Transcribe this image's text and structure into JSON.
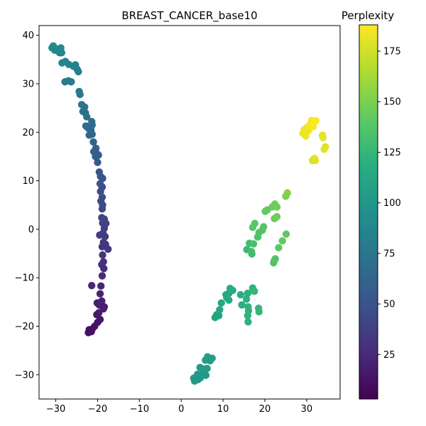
{
  "chart_data": {
    "type": "scatter",
    "title": "BREAST_CANCER_base10",
    "xlabel": "",
    "ylabel": "",
    "xlim": [
      -34,
      38
    ],
    "ylim": [
      -35,
      42
    ],
    "x_ticks": [
      -30,
      -20,
      -10,
      0,
      10,
      20,
      30
    ],
    "y_ticks": [
      -30,
      -20,
      -10,
      0,
      10,
      20,
      30,
      40
    ],
    "grid": false,
    "colorbar": {
      "label": "Perplexity",
      "colormap": "viridis",
      "range": [
        3,
        188
      ],
      "ticks": [
        25,
        50,
        75,
        100,
        125,
        150,
        175
      ]
    },
    "points": [
      {
        "x": -30.6,
        "y": 37.8,
        "c": 90
      },
      {
        "x": -30.0,
        "y": 37.2,
        "c": 89
      },
      {
        "x": -29.5,
        "y": 36.8,
        "c": 88
      },
      {
        "x": -28.8,
        "y": 37.4,
        "c": 89
      },
      {
        "x": -30.9,
        "y": 37.4,
        "c": 90
      },
      {
        "x": -29.1,
        "y": 36.4,
        "c": 87
      },
      {
        "x": -28.6,
        "y": 36.4,
        "c": 87
      },
      {
        "x": -30.2,
        "y": 36.9,
        "c": 88
      },
      {
        "x": -28.5,
        "y": 34.3,
        "c": 85
      },
      {
        "x": -27.7,
        "y": 34.6,
        "c": 84
      },
      {
        "x": -26.9,
        "y": 34.0,
        "c": 84
      },
      {
        "x": -25.8,
        "y": 33.6,
        "c": 83
      },
      {
        "x": -25.3,
        "y": 33.9,
        "c": 83
      },
      {
        "x": -24.9,
        "y": 33.0,
        "c": 82
      },
      {
        "x": -24.6,
        "y": 32.5,
        "c": 82
      },
      {
        "x": -27.8,
        "y": 30.4,
        "c": 80
      },
      {
        "x": -27.0,
        "y": 30.6,
        "c": 80
      },
      {
        "x": -26.3,
        "y": 30.4,
        "c": 80
      },
      {
        "x": -24.4,
        "y": 28.4,
        "c": 78
      },
      {
        "x": -24.2,
        "y": 27.8,
        "c": 77
      },
      {
        "x": -23.8,
        "y": 25.7,
        "c": 75
      },
      {
        "x": -23.1,
        "y": 25.2,
        "c": 74
      },
      {
        "x": -23.5,
        "y": 24.3,
        "c": 73
      },
      {
        "x": -22.9,
        "y": 24.0,
        "c": 72
      },
      {
        "x": -22.6,
        "y": 23.2,
        "c": 71
      },
      {
        "x": -21.4,
        "y": 22.2,
        "c": 69
      },
      {
        "x": -21.3,
        "y": 21.5,
        "c": 68
      },
      {
        "x": -22.8,
        "y": 21.3,
        "c": 68
      },
      {
        "x": -22.2,
        "y": 20.8,
        "c": 67
      },
      {
        "x": -21.6,
        "y": 20.5,
        "c": 66
      },
      {
        "x": -22.0,
        "y": 19.4,
        "c": 64
      },
      {
        "x": -21.3,
        "y": 19.6,
        "c": 64
      },
      {
        "x": -21.0,
        "y": 18.0,
        "c": 62
      },
      {
        "x": -20.4,
        "y": 16.7,
        "c": 60
      },
      {
        "x": -20.9,
        "y": 16.0,
        "c": 59
      },
      {
        "x": -20.2,
        "y": 15.6,
        "c": 58
      },
      {
        "x": -19.8,
        "y": 15.3,
        "c": 58
      },
      {
        "x": -20.5,
        "y": 15.0,
        "c": 57
      },
      {
        "x": -20.0,
        "y": 13.8,
        "c": 55
      },
      {
        "x": -19.6,
        "y": 11.8,
        "c": 52
      },
      {
        "x": -19.3,
        "y": 10.9,
        "c": 51
      },
      {
        "x": -18.8,
        "y": 10.5,
        "c": 50
      },
      {
        "x": -19.4,
        "y": 9.4,
        "c": 49
      },
      {
        "x": -18.9,
        "y": 8.7,
        "c": 48
      },
      {
        "x": -19.3,
        "y": 7.8,
        "c": 47
      },
      {
        "x": -18.9,
        "y": 6.6,
        "c": 46
      },
      {
        "x": -19.2,
        "y": 5.8,
        "c": 45
      },
      {
        "x": -18.8,
        "y": 5.0,
        "c": 44
      },
      {
        "x": -18.9,
        "y": 4.2,
        "c": 43
      },
      {
        "x": -19.0,
        "y": 2.4,
        "c": 41
      },
      {
        "x": -18.4,
        "y": 2.1,
        "c": 40
      },
      {
        "x": -18.8,
        "y": 1.3,
        "c": 39
      },
      {
        "x": -18.0,
        "y": 1.2,
        "c": 39
      },
      {
        "x": -18.4,
        "y": 0.2,
        "c": 38
      },
      {
        "x": -19.5,
        "y": -1.2,
        "c": 36
      },
      {
        "x": -18.7,
        "y": -0.8,
        "c": 36
      },
      {
        "x": -18.2,
        "y": -1.5,
        "c": 35
      },
      {
        "x": -18.6,
        "y": -2.7,
        "c": 34
      },
      {
        "x": -18.1,
        "y": -3.1,
        "c": 33
      },
      {
        "x": -18.9,
        "y": -3.6,
        "c": 33
      },
      {
        "x": -17.5,
        "y": -4.1,
        "c": 32
      },
      {
        "x": -18.8,
        "y": -5.3,
        "c": 31
      },
      {
        "x": -18.6,
        "y": -6.7,
        "c": 29
      },
      {
        "x": -19.0,
        "y": -7.3,
        "c": 28
      },
      {
        "x": -18.5,
        "y": -8.1,
        "c": 27
      },
      {
        "x": -18.9,
        "y": -9.6,
        "c": 26
      },
      {
        "x": -21.4,
        "y": -11.6,
        "c": 24
      },
      {
        "x": -19.2,
        "y": -11.7,
        "c": 24
      },
      {
        "x": -19.4,
        "y": -13.3,
        "c": 22
      },
      {
        "x": -19.0,
        "y": -14.8,
        "c": 20
      },
      {
        "x": -19.6,
        "y": -15.6,
        "c": 19
      },
      {
        "x": -20.1,
        "y": -15.2,
        "c": 19
      },
      {
        "x": -18.4,
        "y": -16.0,
        "c": 18
      },
      {
        "x": -18.6,
        "y": -16.4,
        "c": 18
      },
      {
        "x": -19.7,
        "y": -17.2,
        "c": 17
      },
      {
        "x": -20.2,
        "y": -17.6,
        "c": 16
      },
      {
        "x": -19.4,
        "y": -18.6,
        "c": 15
      },
      {
        "x": -20.0,
        "y": -19.2,
        "c": 14
      },
      {
        "x": -20.7,
        "y": -20.0,
        "c": 13
      },
      {
        "x": -21.3,
        "y": -20.6,
        "c": 12
      },
      {
        "x": -22.0,
        "y": -20.7,
        "c": 12
      },
      {
        "x": -21.5,
        "y": -21.1,
        "c": 11
      },
      {
        "x": -22.2,
        "y": -21.3,
        "c": 11
      },
      {
        "x": 3.0,
        "y": -30.7,
        "c": 100
      },
      {
        "x": 3.2,
        "y": -31.3,
        "c": 101
      },
      {
        "x": 3.9,
        "y": -29.9,
        "c": 101
      },
      {
        "x": 4.6,
        "y": -30.6,
        "c": 102
      },
      {
        "x": 4.5,
        "y": -28.5,
        "c": 102
      },
      {
        "x": 5.3,
        "y": -29.6,
        "c": 103
      },
      {
        "x": 5.9,
        "y": -30.1,
        "c": 103
      },
      {
        "x": 5.6,
        "y": -28.8,
        "c": 104
      },
      {
        "x": 6.2,
        "y": -28.7,
        "c": 104
      },
      {
        "x": 5.8,
        "y": -27.0,
        "c": 105
      },
      {
        "x": 6.3,
        "y": -26.3,
        "c": 105
      },
      {
        "x": 6.9,
        "y": -27.1,
        "c": 106
      },
      {
        "x": 7.4,
        "y": -26.6,
        "c": 106
      },
      {
        "x": 4.0,
        "y": -31.0,
        "c": 100
      },
      {
        "x": 8.1,
        "y": -18.2,
        "c": 110
      },
      {
        "x": 8.5,
        "y": -17.6,
        "c": 111
      },
      {
        "x": 9.0,
        "y": -17.8,
        "c": 111
      },
      {
        "x": 9.2,
        "y": -16.6,
        "c": 112
      },
      {
        "x": 9.6,
        "y": -15.2,
        "c": 113
      },
      {
        "x": 10.7,
        "y": -13.5,
        "c": 114
      },
      {
        "x": 10.9,
        "y": -14.1,
        "c": 114
      },
      {
        "x": 11.4,
        "y": -13.2,
        "c": 115
      },
      {
        "x": 11.4,
        "y": -14.6,
        "c": 115
      },
      {
        "x": 11.7,
        "y": -12.2,
        "c": 116
      },
      {
        "x": 12.3,
        "y": -12.6,
        "c": 117
      },
      {
        "x": 14.2,
        "y": -13.5,
        "c": 118
      },
      {
        "x": 14.5,
        "y": -15.6,
        "c": 119
      },
      {
        "x": 15.9,
        "y": -13.2,
        "c": 120
      },
      {
        "x": 15.6,
        "y": -14.4,
        "c": 120
      },
      {
        "x": 16.0,
        "y": -16.0,
        "c": 121
      },
      {
        "x": 16.1,
        "y": -16.8,
        "c": 121
      },
      {
        "x": 15.9,
        "y": -17.8,
        "c": 122
      },
      {
        "x": 16.0,
        "y": -19.1,
        "c": 122
      },
      {
        "x": 17.1,
        "y": -12.1,
        "c": 123
      },
      {
        "x": 17.5,
        "y": -12.8,
        "c": 124
      },
      {
        "x": 18.5,
        "y": -16.3,
        "c": 124
      },
      {
        "x": 18.6,
        "y": -17.0,
        "c": 125
      },
      {
        "x": 15.7,
        "y": -4.2,
        "c": 128
      },
      {
        "x": 16.3,
        "y": -2.9,
        "c": 130
      },
      {
        "x": 16.8,
        "y": -4.6,
        "c": 131
      },
      {
        "x": 16.9,
        "y": -5.1,
        "c": 131
      },
      {
        "x": 17.3,
        "y": -3.0,
        "c": 133
      },
      {
        "x": 18.3,
        "y": -1.6,
        "c": 135
      },
      {
        "x": 18.6,
        "y": -0.7,
        "c": 136
      },
      {
        "x": 19.4,
        "y": -0.2,
        "c": 137
      },
      {
        "x": 19.7,
        "y": 0.5,
        "c": 138
      },
      {
        "x": 17.1,
        "y": 0.4,
        "c": 139
      },
      {
        "x": 17.6,
        "y": 1.2,
        "c": 140
      },
      {
        "x": 20.1,
        "y": 3.7,
        "c": 142
      },
      {
        "x": 20.6,
        "y": 4.0,
        "c": 143
      },
      {
        "x": 22.3,
        "y": 2.2,
        "c": 144
      },
      {
        "x": 22.9,
        "y": 2.6,
        "c": 145
      },
      {
        "x": 22.4,
        "y": 5.2,
        "c": 147
      },
      {
        "x": 22.9,
        "y": 4.6,
        "c": 147
      },
      {
        "x": 21.8,
        "y": 4.6,
        "c": 146
      },
      {
        "x": 24.2,
        "y": -2.4,
        "c": 143
      },
      {
        "x": 25.1,
        "y": -1.0,
        "c": 142
      },
      {
        "x": 23.3,
        "y": -3.8,
        "c": 141
      },
      {
        "x": 22.5,
        "y": -6.1,
        "c": 138
      },
      {
        "x": 22.1,
        "y": -6.9,
        "c": 137
      },
      {
        "x": 22.3,
        "y": -6.4,
        "c": 137
      },
      {
        "x": 25.4,
        "y": 7.5,
        "c": 152
      },
      {
        "x": 25.0,
        "y": 6.8,
        "c": 151
      },
      {
        "x": 29.1,
        "y": 19.8,
        "c": 182
      },
      {
        "x": 29.4,
        "y": 20.5,
        "c": 183
      },
      {
        "x": 29.8,
        "y": 19.2,
        "c": 184
      },
      {
        "x": 30.1,
        "y": 21.0,
        "c": 184
      },
      {
        "x": 30.4,
        "y": 20.3,
        "c": 185
      },
      {
        "x": 30.8,
        "y": 21.6,
        "c": 186
      },
      {
        "x": 31.2,
        "y": 22.4,
        "c": 186
      },
      {
        "x": 31.6,
        "y": 21.2,
        "c": 187
      },
      {
        "x": 32.2,
        "y": 22.4,
        "c": 187
      },
      {
        "x": 30.6,
        "y": 20.6,
        "c": 185
      },
      {
        "x": 29.6,
        "y": 19.9,
        "c": 183
      },
      {
        "x": 31.4,
        "y": 14.2,
        "c": 178
      },
      {
        "x": 31.9,
        "y": 14.6,
        "c": 179
      },
      {
        "x": 32.1,
        "y": 14.2,
        "c": 179
      },
      {
        "x": 33.8,
        "y": 19.4,
        "c": 181
      },
      {
        "x": 33.9,
        "y": 18.9,
        "c": 181
      },
      {
        "x": 34.2,
        "y": 16.5,
        "c": 180
      },
      {
        "x": 34.5,
        "y": 17.0,
        "c": 180
      }
    ]
  }
}
